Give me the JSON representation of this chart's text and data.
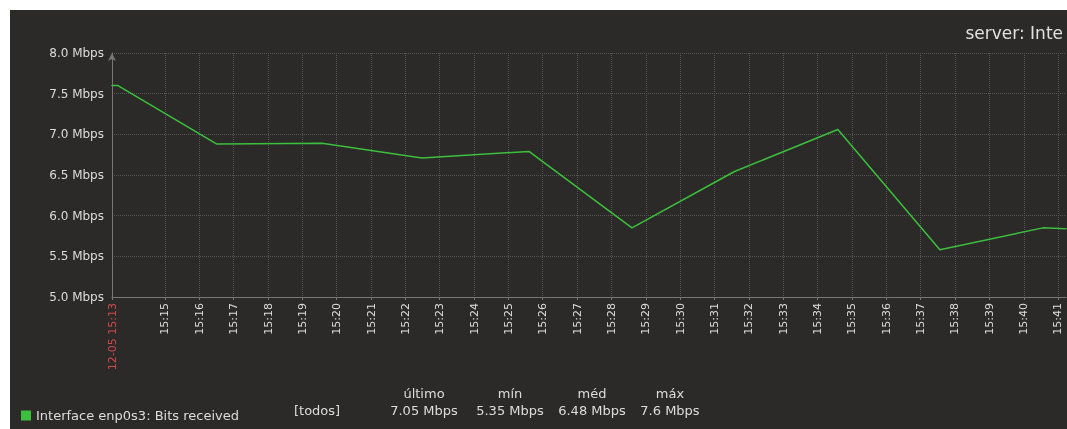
{
  "chart_data": {
    "type": "line",
    "title": "server: Inte",
    "x": [
      15.2243,
      15.2272,
      15.2752,
      15.3262,
      15.3747,
      15.4266,
      15.4766,
      15.5261,
      15.5765,
      15.626,
      15.676,
      15.6872
    ],
    "series": [
      {
        "name": "Interface enp0s3: Bits received",
        "color": "#3cbf3c",
        "values": [
          7.6,
          7.6,
          6.88,
          6.89,
          6.71,
          6.79,
          5.85,
          6.54,
          7.06,
          5.58,
          5.85,
          5.84
        ]
      }
    ],
    "xlim": [
      15.2243,
      15.6872
    ],
    "xticks": [
      {
        "value": 15.2243,
        "label": "12-05 15:13"
      },
      {
        "value": 15.25,
        "label": "15:15"
      },
      {
        "value": 15.2667,
        "label": "15:16"
      },
      {
        "value": 15.2833,
        "label": "15:17"
      },
      {
        "value": 15.3,
        "label": "15:18"
      },
      {
        "value": 15.3167,
        "label": "15:19"
      },
      {
        "value": 15.3333,
        "label": "15:20"
      },
      {
        "value": 15.35,
        "label": "15:21"
      },
      {
        "value": 15.3667,
        "label": "15:22"
      },
      {
        "value": 15.3833,
        "label": "15:23"
      },
      {
        "value": 15.4,
        "label": "15:24"
      },
      {
        "value": 15.4167,
        "label": "15:25"
      },
      {
        "value": 15.4333,
        "label": "15:26"
      },
      {
        "value": 15.45,
        "label": "15:27"
      },
      {
        "value": 15.4667,
        "label": "15:28"
      },
      {
        "value": 15.4833,
        "label": "15:29"
      },
      {
        "value": 15.5,
        "label": "15:30"
      },
      {
        "value": 15.5167,
        "label": "15:31"
      },
      {
        "value": 15.5333,
        "label": "15:32"
      },
      {
        "value": 15.55,
        "label": "15:33"
      },
      {
        "value": 15.5667,
        "label": "15:34"
      },
      {
        "value": 15.5833,
        "label": "15:35"
      },
      {
        "value": 15.6,
        "label": "15:36"
      },
      {
        "value": 15.6167,
        "label": "15:37"
      },
      {
        "value": 15.6333,
        "label": "15:38"
      },
      {
        "value": 15.65,
        "label": "15:39"
      },
      {
        "value": 15.6667,
        "label": "15:40"
      },
      {
        "value": 15.6833,
        "label": "15:41"
      }
    ],
    "ylim": [
      5,
      8
    ],
    "yticks": [
      {
        "value": 5,
        "label": "5.0 Mbps"
      },
      {
        "value": 5.5,
        "label": "5.5 Mbps"
      },
      {
        "value": 6,
        "label": "6.0 Mbps"
      },
      {
        "value": 6.5,
        "label": "6.5 Mbps"
      },
      {
        "value": 7,
        "label": "7.0 Mbps"
      },
      {
        "value": 7.5,
        "label": "7.5 Mbps"
      },
      {
        "value": 8,
        "label": "8.0 Mbps"
      }
    ],
    "grid": true,
    "legend": "bottom left",
    "marker": "none",
    "line_style": "solid",
    "annotations": [
      "[todos]",
      "último",
      "mín",
      "méd",
      "máx",
      "7.05 Mbps",
      "5.35 Mbps",
      "6.48 Mbps",
      "7.6 Mbps"
    ]
  }
}
